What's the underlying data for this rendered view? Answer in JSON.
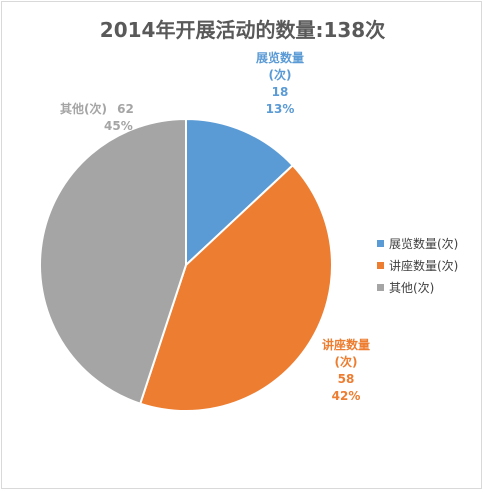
{
  "chart_data": {
    "type": "pie",
    "title": "2014年开展活动的数量:138次",
    "categories": [
      "展览数量(次)",
      "讲座数量(次)",
      "其他(次)"
    ],
    "values": [
      18,
      58,
      62
    ],
    "percent_labels": [
      "13%",
      "42%",
      "45%"
    ],
    "colors": [
      "#5b9bd5",
      "#ed7d31",
      "#a5a5a5"
    ],
    "legend_labels": [
      "展览数量(次)",
      "讲座数量(次)",
      "其他(次)"
    ],
    "legend_position": "right",
    "data_labels": [
      {
        "name_line1": "展览数量",
        "name_line2": "(次)",
        "value": "18",
        "percent": "13%"
      },
      {
        "name_line1": "讲座数量",
        "name_line2": "(次)",
        "value": "58",
        "percent": "42%"
      },
      {
        "name_line1": "其他(次)",
        "value": "62",
        "percent": "45%"
      }
    ]
  }
}
